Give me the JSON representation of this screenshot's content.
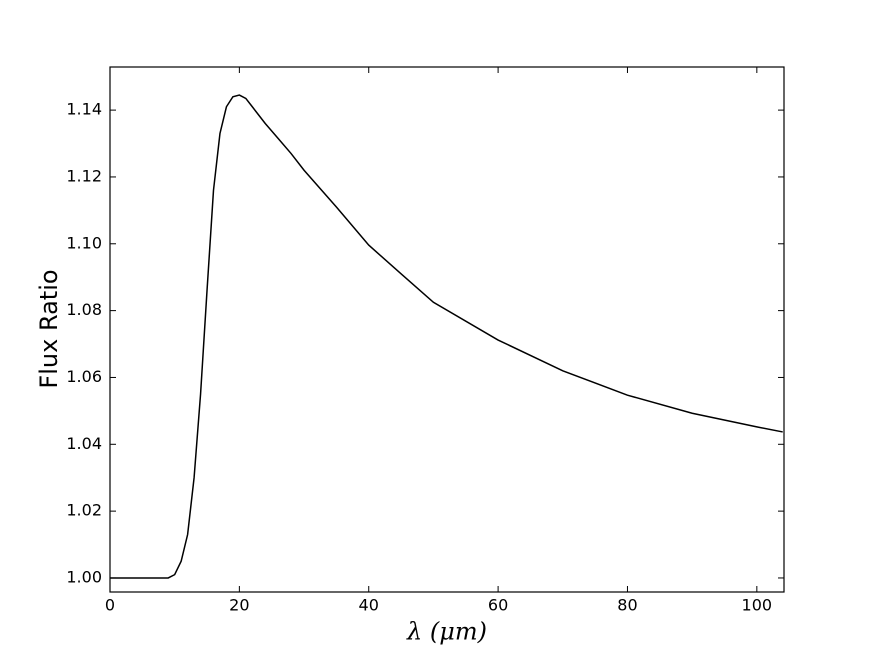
{
  "chart_data": {
    "type": "line",
    "ylabel": "Flux Ratio",
    "xlabel": "λ (μm)",
    "x": [
      0,
      8,
      9,
      10,
      11,
      12,
      13,
      14,
      15,
      16,
      17,
      18,
      19,
      20,
      21,
      22,
      24,
      26,
      28,
      30,
      35,
      40,
      45,
      50,
      60,
      70,
      80,
      90,
      100,
      104
    ],
    "series": [
      {
        "color": "#000000",
        "values": [
          1.0,
          1.0,
          1.0,
          1.001,
          1.005,
          1.013,
          1.03,
          1.055,
          1.086,
          1.116,
          1.133,
          1.141,
          1.144,
          1.1445,
          1.1435,
          1.141,
          1.136,
          1.1315,
          1.127,
          1.122,
          1.111,
          1.0996,
          1.091,
          1.0825,
          1.0712,
          1.062,
          1.0547,
          1.0493,
          1.0452,
          1.0437
        ]
      }
    ],
    "xlim": [
      0,
      104.2
    ],
    "ylim": [
      0.9958,
      1.1529
    ],
    "xticks": [
      0,
      20,
      40,
      60,
      80,
      100
    ],
    "yticks": [
      {
        "value": 1.0,
        "label": "1.00"
      },
      1.02,
      1.04,
      1.06,
      1.08,
      {
        "value": 1.1,
        "label": "1.10"
      },
      1.12,
      1.14
    ],
    "grid": false
  }
}
